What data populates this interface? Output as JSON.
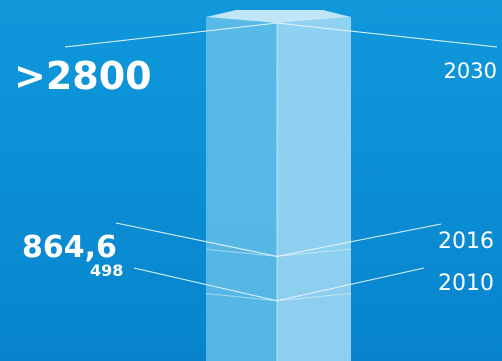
{
  "colors": {
    "background": "#0b8fd6",
    "bar_left_face": "#6cc4ea",
    "bar_right_face": "#a6dcf4",
    "bar_top": "#d4eefa",
    "label": "#ffffff",
    "line": "#e4f4fc"
  },
  "chart_data": {
    "type": "bar",
    "categories": [
      "2030",
      "2016",
      "2010"
    ],
    "series": [
      {
        "values": [
          2800,
          864.6,
          498
        ]
      }
    ],
    "value_labels": [
      ">2800",
      "864,6",
      "498"
    ],
    "ylim": [
      0,
      2800
    ],
    "grid": false,
    "legend": "none",
    "title": "",
    "xlabel": "",
    "ylabel": ""
  }
}
